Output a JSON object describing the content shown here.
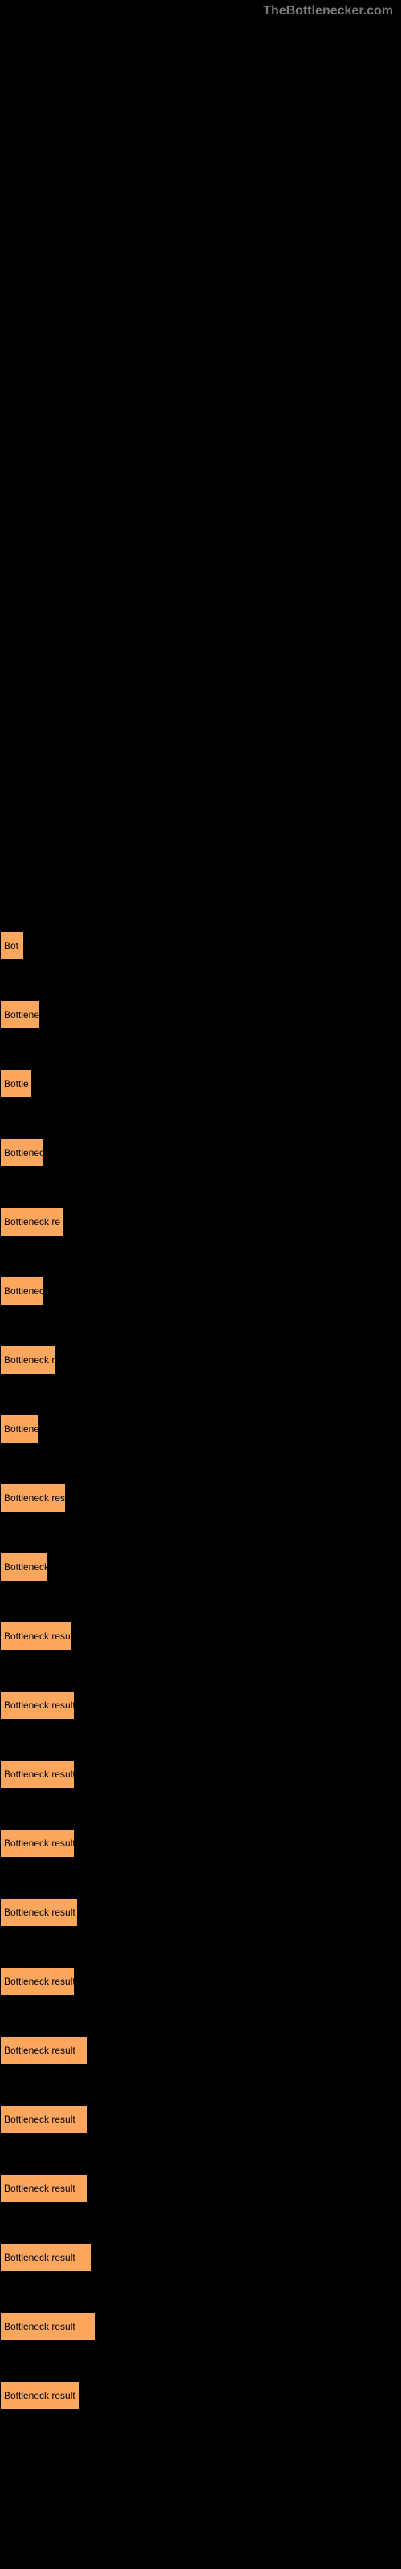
{
  "watermark": "TheBottlenecker.com",
  "chart": {
    "type": "bar-horizontal",
    "bar_color": "#fca65e",
    "background_color": "#000000",
    "text_color": "#000000",
    "bars": [
      {
        "width": 30,
        "label": "Bot"
      },
      {
        "width": 50,
        "label": "Bottlened"
      },
      {
        "width": 40,
        "label": "Bottle"
      },
      {
        "width": 55,
        "label": "Bottlenec"
      },
      {
        "width": 80,
        "label": "Bottleneck re"
      },
      {
        "width": 55,
        "label": "Bottlenec"
      },
      {
        "width": 70,
        "label": "Bottleneck r"
      },
      {
        "width": 48,
        "label": "Bottlene"
      },
      {
        "width": 82,
        "label": "Bottleneck res"
      },
      {
        "width": 60,
        "label": "Bottleneck"
      },
      {
        "width": 90,
        "label": "Bottleneck result f"
      },
      {
        "width": 93,
        "label": "Bottleneck result"
      },
      {
        "width": 93,
        "label": "Bottleneck result"
      },
      {
        "width": 93,
        "label": "Bottleneck result"
      },
      {
        "width": 97,
        "label": "Bottleneck result f"
      },
      {
        "width": 93,
        "label": "Bottleneck result"
      },
      {
        "width": 110,
        "label": "Bottleneck result"
      },
      {
        "width": 110,
        "label": "Bottleneck result"
      },
      {
        "width": 110,
        "label": "Bottleneck result"
      },
      {
        "width": 115,
        "label": "Bottleneck result"
      },
      {
        "width": 120,
        "label": "Bottleneck result"
      },
      {
        "width": 100,
        "label": "Bottleneck result"
      }
    ]
  }
}
